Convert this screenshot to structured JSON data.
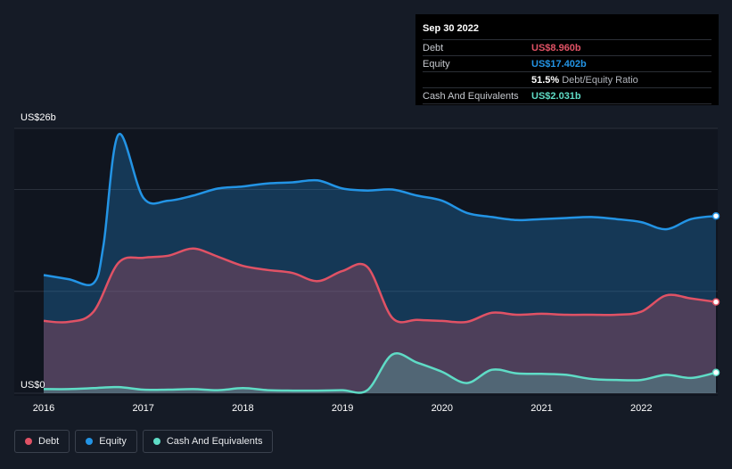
{
  "tooltip": {
    "date": "Sep 30 2022",
    "debt_label": "Debt",
    "debt_value": "US$8.960b",
    "equity_label": "Equity",
    "equity_value": "US$17.402b",
    "ratio_value": "51.5%",
    "ratio_label": "Debt/Equity Ratio",
    "cash_label": "Cash And Equivalents",
    "cash_value": "US$2.031b"
  },
  "legend": {
    "debt": "Debt",
    "equity": "Equity",
    "cash": "Cash And Equivalents"
  },
  "colors": {
    "debt": "#e05265",
    "equity": "#2394e5",
    "cash": "#5fdcc6",
    "background": "#151b26"
  },
  "chart_data": {
    "type": "area",
    "y_unit_label_top": "US$26b",
    "y_unit_label_bottom": "US$0",
    "ylim": [
      0,
      26
    ],
    "xlim": [
      2016.0,
      2022.75
    ],
    "x_ticks": [
      2016,
      2017,
      2018,
      2019,
      2020,
      2021,
      2022
    ],
    "grid": true,
    "legend_position": "bottom-left",
    "series": [
      {
        "name": "Equity",
        "points": [
          [
            2016.0,
            11.6
          ],
          [
            2016.25,
            11.2
          ],
          [
            2016.5,
            10.8
          ],
          [
            2016.6,
            14.5
          ],
          [
            2016.75,
            25.4
          ],
          [
            2017.0,
            19.2
          ],
          [
            2017.25,
            18.9
          ],
          [
            2017.5,
            19.4
          ],
          [
            2017.75,
            20.1
          ],
          [
            2018.0,
            20.3
          ],
          [
            2018.25,
            20.6
          ],
          [
            2018.5,
            20.7
          ],
          [
            2018.75,
            20.9
          ],
          [
            2019.0,
            20.1
          ],
          [
            2019.25,
            19.9
          ],
          [
            2019.5,
            20.0
          ],
          [
            2019.75,
            19.4
          ],
          [
            2020.0,
            18.9
          ],
          [
            2020.25,
            17.7
          ],
          [
            2020.5,
            17.3
          ],
          [
            2020.75,
            17.0
          ],
          [
            2021.0,
            17.1
          ],
          [
            2021.25,
            17.2
          ],
          [
            2021.5,
            17.3
          ],
          [
            2021.75,
            17.1
          ],
          [
            2022.0,
            16.8
          ],
          [
            2022.25,
            16.1
          ],
          [
            2022.5,
            17.1
          ],
          [
            2022.75,
            17.402
          ]
        ]
      },
      {
        "name": "Debt",
        "points": [
          [
            2016.0,
            7.1
          ],
          [
            2016.25,
            7.0
          ],
          [
            2016.5,
            8.0
          ],
          [
            2016.75,
            12.8
          ],
          [
            2017.0,
            13.3
          ],
          [
            2017.25,
            13.5
          ],
          [
            2017.5,
            14.2
          ],
          [
            2017.75,
            13.4
          ],
          [
            2018.0,
            12.5
          ],
          [
            2018.25,
            12.1
          ],
          [
            2018.5,
            11.8
          ],
          [
            2018.75,
            11.0
          ],
          [
            2019.0,
            12.0
          ],
          [
            2019.25,
            12.4
          ],
          [
            2019.5,
            7.4
          ],
          [
            2019.75,
            7.2
          ],
          [
            2020.0,
            7.1
          ],
          [
            2020.25,
            7.0
          ],
          [
            2020.5,
            7.9
          ],
          [
            2020.75,
            7.7
          ],
          [
            2021.0,
            7.8
          ],
          [
            2021.25,
            7.7
          ],
          [
            2021.5,
            7.7
          ],
          [
            2021.75,
            7.7
          ],
          [
            2022.0,
            8.0
          ],
          [
            2022.25,
            9.6
          ],
          [
            2022.5,
            9.3
          ],
          [
            2022.75,
            8.96
          ]
        ]
      },
      {
        "name": "Cash And Equivalents",
        "points": [
          [
            2016.0,
            0.4
          ],
          [
            2016.25,
            0.4
          ],
          [
            2016.5,
            0.5
          ],
          [
            2016.75,
            0.6
          ],
          [
            2017.0,
            0.35
          ],
          [
            2017.25,
            0.35
          ],
          [
            2017.5,
            0.4
          ],
          [
            2017.75,
            0.3
          ],
          [
            2018.0,
            0.5
          ],
          [
            2018.25,
            0.3
          ],
          [
            2018.5,
            0.25
          ],
          [
            2018.75,
            0.25
          ],
          [
            2019.0,
            0.3
          ],
          [
            2019.25,
            0.3
          ],
          [
            2019.5,
            3.8
          ],
          [
            2019.75,
            3.0
          ],
          [
            2020.0,
            2.1
          ],
          [
            2020.25,
            1.0
          ],
          [
            2020.5,
            2.3
          ],
          [
            2020.75,
            1.95
          ],
          [
            2021.0,
            1.9
          ],
          [
            2021.25,
            1.8
          ],
          [
            2021.5,
            1.4
          ],
          [
            2021.75,
            1.3
          ],
          [
            2022.0,
            1.3
          ],
          [
            2022.25,
            1.8
          ],
          [
            2022.5,
            1.5
          ],
          [
            2022.75,
            2.031
          ]
        ]
      }
    ]
  }
}
